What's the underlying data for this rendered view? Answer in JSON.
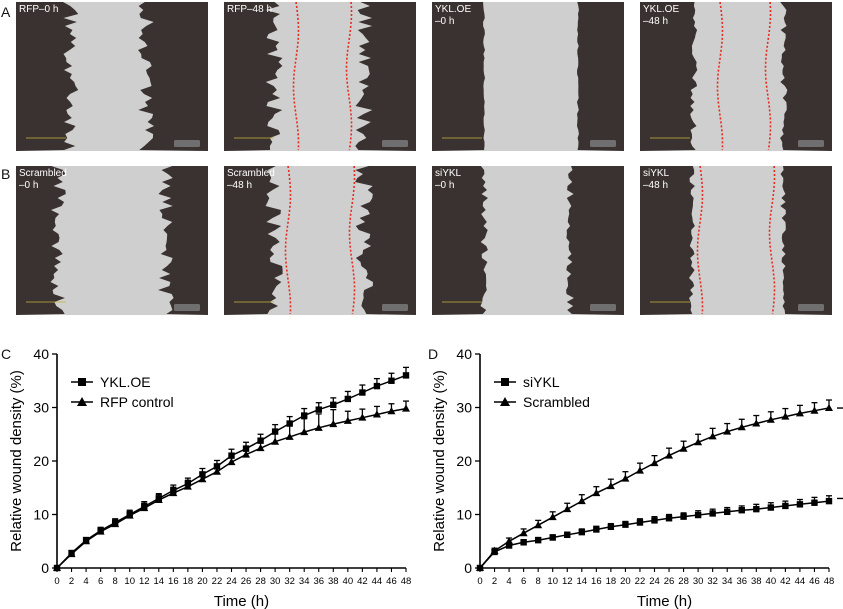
{
  "panel_letters": {
    "A": "A",
    "B": "B",
    "C": "C",
    "D": "D"
  },
  "micrographs": {
    "row_a": [
      {
        "label": "RFP–0 h"
      },
      {
        "label": "RFP–48 h"
      },
      {
        "label": "YKL.OE\n–0 h"
      },
      {
        "label": "YKL.OE\n–48 h"
      }
    ],
    "row_b": [
      {
        "label": "Scrambled\n–0 h"
      },
      {
        "label": "Scrambled\n–48 h"
      },
      {
        "label": "siYKL\n–0 h"
      },
      {
        "label": "siYKL\n–48 h"
      }
    ]
  },
  "colors": {
    "cell_dark": "#3a3230",
    "wound": "#cfcfcf",
    "front_line": "#e8291c"
  },
  "chart_data": [
    {
      "type": "line",
      "panel": "C",
      "xlabel": "Time (h)",
      "ylabel": "Relative wound density (%)",
      "xlim": [
        0,
        48
      ],
      "ylim": [
        0,
        40
      ],
      "xticks": [
        0,
        2,
        4,
        6,
        8,
        10,
        12,
        14,
        16,
        18,
        20,
        22,
        24,
        26,
        28,
        30,
        32,
        34,
        36,
        38,
        40,
        42,
        44,
        46,
        48
      ],
      "yticks": [
        0,
        10,
        20,
        30,
        40
      ],
      "legend_position": "top-left",
      "x": [
        0,
        2,
        4,
        6,
        8,
        10,
        12,
        14,
        16,
        18,
        20,
        22,
        24,
        26,
        28,
        30,
        32,
        34,
        36,
        38,
        40,
        42,
        44,
        46,
        48
      ],
      "series": [
        {
          "name": "YKL.OE",
          "marker": "square",
          "values": [
            0,
            2.8,
            5.2,
            7.0,
            8.5,
            10.0,
            11.5,
            13.0,
            14.5,
            15.8,
            17.5,
            19.0,
            21.0,
            22.3,
            23.8,
            25.5,
            27.0,
            28.5,
            29.6,
            30.5,
            31.6,
            32.8,
            34.0,
            35.0,
            36.0
          ],
          "errors": [
            0.3,
            0.4,
            0.5,
            0.6,
            0.7,
            0.8,
            0.9,
            0.9,
            1.0,
            1.0,
            1.1,
            1.1,
            1.2,
            1.2,
            1.2,
            1.3,
            1.3,
            1.3,
            1.3,
            1.3,
            1.4,
            1.4,
            1.4,
            1.4,
            1.5
          ]
        },
        {
          "name": "RFP control",
          "marker": "triangle",
          "values": [
            0,
            2.6,
            5.0,
            6.8,
            8.2,
            9.8,
            11.2,
            12.7,
            14.0,
            15.2,
            16.6,
            18.0,
            19.8,
            21.2,
            22.4,
            23.6,
            24.5,
            25.4,
            26.2,
            26.9,
            27.5,
            28.1,
            28.7,
            29.3,
            29.8
          ],
          "errors": [
            0.3,
            0.4,
            0.5,
            0.6,
            0.7,
            0.8,
            0.9,
            1.0,
            1.1,
            1.2,
            1.3,
            1.4,
            1.5,
            1.6,
            1.7,
            2.0,
            2.3,
            2.5,
            2.6,
            2.7,
            1.8,
            1.6,
            1.5,
            1.4,
            1.4
          ]
        }
      ]
    },
    {
      "type": "line",
      "panel": "D",
      "xlabel": "Time (h)",
      "ylabel": "Relative wound density (%)",
      "xlim": [
        0,
        48
      ],
      "ylim": [
        0,
        40
      ],
      "xticks": [
        0,
        2,
        4,
        6,
        8,
        10,
        12,
        14,
        16,
        18,
        20,
        22,
        24,
        26,
        28,
        30,
        32,
        34,
        36,
        38,
        40,
        42,
        44,
        46,
        48
      ],
      "yticks": [
        0,
        10,
        20,
        30,
        40
      ],
      "legend_position": "top-left",
      "annotation": "* * *",
      "x": [
        0,
        2,
        4,
        6,
        8,
        10,
        12,
        14,
        16,
        18,
        20,
        22,
        24,
        26,
        28,
        30,
        32,
        34,
        36,
        38,
        40,
        42,
        44,
        46,
        48
      ],
      "series": [
        {
          "name": "siYKL",
          "marker": "square",
          "values": [
            0,
            3.0,
            4.2,
            4.8,
            5.2,
            5.7,
            6.2,
            6.7,
            7.2,
            7.7,
            8.1,
            8.5,
            8.9,
            9.3,
            9.6,
            9.9,
            10.2,
            10.5,
            10.8,
            11.0,
            11.3,
            11.6,
            11.9,
            12.2,
            12.5
          ],
          "errors": [
            0.3,
            0.4,
            0.4,
            0.5,
            0.5,
            0.5,
            0.5,
            0.6,
            0.6,
            0.6,
            0.6,
            0.7,
            0.7,
            0.7,
            0.7,
            0.8,
            0.8,
            0.8,
            0.8,
            0.9,
            0.9,
            0.9,
            0.9,
            1.0,
            1.0
          ]
        },
        {
          "name": "Scrambled",
          "marker": "triangle",
          "values": [
            0,
            3.2,
            5.0,
            6.5,
            8.0,
            9.5,
            11.0,
            12.5,
            14.0,
            15.3,
            16.7,
            18.2,
            19.6,
            21.0,
            22.3,
            23.5,
            24.6,
            25.5,
            26.3,
            27.0,
            27.7,
            28.3,
            28.9,
            29.4,
            29.9
          ],
          "errors": [
            0.3,
            0.5,
            0.6,
            0.8,
            0.9,
            1.0,
            1.1,
            1.2,
            1.2,
            1.3,
            1.3,
            1.4,
            1.4,
            1.4,
            1.4,
            1.5,
            1.5,
            1.5,
            1.5,
            1.5,
            1.5,
            1.5,
            1.5,
            1.5,
            1.5
          ]
        }
      ]
    }
  ]
}
